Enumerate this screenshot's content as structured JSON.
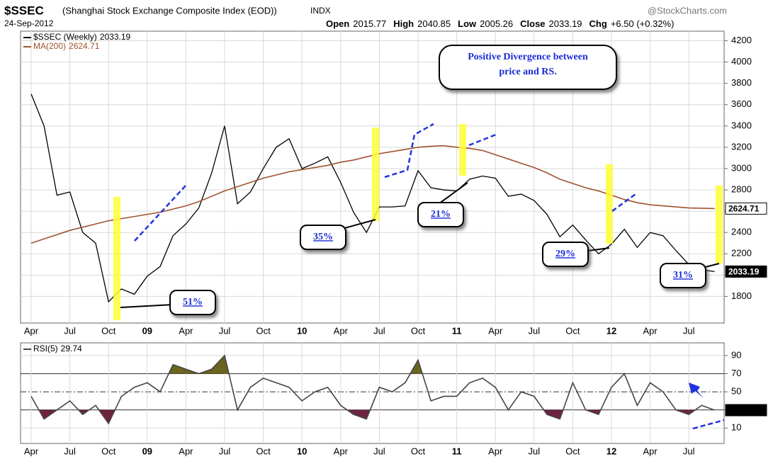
{
  "header": {
    "symbol": "$SSEC",
    "name": "(Shanghai Stock Exchange Composite Index (EOD))",
    "exchange": "INDX",
    "date": "24-Sep-2012",
    "source": "@StockCharts.com",
    "quote": [
      {
        "label": "Open",
        "value": "2015.77"
      },
      {
        "label": "High",
        "value": "2040.85"
      },
      {
        "label": "Low",
        "value": "2005.26"
      },
      {
        "label": "Close",
        "value": "2033.19"
      },
      {
        "label": "Chg",
        "value": "+6.50 (+0.32%)"
      }
    ]
  },
  "chart_data": [
    {
      "type": "line",
      "categories": [
        "Apr",
        null,
        null,
        "Jul",
        null,
        null,
        "Oct",
        null,
        null,
        "09",
        null,
        null,
        "Apr",
        null,
        null,
        "Jul",
        null,
        null,
        "Oct",
        null,
        null,
        "10",
        null,
        null,
        "Apr",
        null,
        null,
        "Jul",
        null,
        null,
        "Oct",
        null,
        null,
        "11",
        null,
        null,
        "Apr",
        null,
        null,
        "Jul",
        null,
        null,
        "Oct",
        null,
        null,
        "12",
        null,
        null,
        "Apr",
        null,
        null,
        "Jul",
        null,
        null
      ],
      "series": [
        {
          "name": "$SSEC (Weekly)",
          "color": "#000000",
          "values": [
            3700,
            3400,
            2750,
            2780,
            2400,
            2300,
            1750,
            1870,
            1820,
            1990,
            2080,
            2370,
            2480,
            2630,
            2960,
            3400,
            2670,
            2780,
            3000,
            3200,
            3280,
            3000,
            3050,
            3110,
            2870,
            2590,
            2400,
            2640,
            2640,
            2650,
            2980,
            2820,
            2800,
            2790,
            2900,
            2930,
            2910,
            2740,
            2760,
            2700,
            2570,
            2360,
            2470,
            2330,
            2200,
            2290,
            2430,
            2260,
            2400,
            2370,
            2230,
            2100,
            2050,
            2033.19
          ]
        },
        {
          "name": "MA(200)",
          "color": "#a0522d",
          "values": [
            2300,
            2340,
            2380,
            2420,
            2450,
            2480,
            2510,
            2530,
            2550,
            2570,
            2590,
            2620,
            2650,
            2690,
            2740,
            2790,
            2830,
            2870,
            2910,
            2940,
            2970,
            2990,
            3010,
            3030,
            3060,
            3080,
            3110,
            3140,
            3160,
            3180,
            3200,
            3210,
            3215,
            3200,
            3190,
            3170,
            3130,
            3090,
            3050,
            3010,
            2960,
            2900,
            2860,
            2820,
            2790,
            2750,
            2710,
            2680,
            2660,
            2650,
            2640,
            2630,
            2628,
            2624.71
          ]
        }
      ],
      "ylim": [
        1550,
        4290
      ],
      "yticks": [
        1800,
        2000,
        2200,
        2400,
        2600,
        2800,
        3000,
        3200,
        3400,
        3600,
        3800,
        4000,
        4200
      ],
      "grid": true,
      "callout": [
        "Positive Divergence between",
        "price and RS."
      ],
      "pct_labels": [
        "51%",
        "35%",
        "21%",
        "29%",
        "31%"
      ]
    },
    {
      "type": "line",
      "categories": [
        "Apr",
        null,
        null,
        "Jul",
        null,
        null,
        "Oct",
        null,
        null,
        "09",
        null,
        null,
        "Apr",
        null,
        null,
        "Jul",
        null,
        null,
        "Oct",
        null,
        null,
        "10",
        null,
        null,
        "Apr",
        null,
        null,
        "Jul",
        null,
        null,
        "Oct",
        null,
        null,
        "11",
        null,
        null,
        "Apr",
        null,
        null,
        "Jul",
        null,
        null,
        "Oct",
        null,
        null,
        "12",
        null,
        null,
        "Apr",
        null,
        null,
        "Jul",
        null,
        null
      ],
      "series": [
        {
          "name": "RSI(5)",
          "color": "#444444",
          "values": [
            45,
            20,
            30,
            40,
            25,
            35,
            15,
            45,
            55,
            60,
            50,
            80,
            75,
            70,
            75,
            90,
            30,
            55,
            65,
            60,
            55,
            40,
            50,
            55,
            35,
            25,
            20,
            55,
            50,
            60,
            85,
            40,
            45,
            45,
            60,
            65,
            55,
            30,
            50,
            45,
            25,
            20,
            60,
            30,
            25,
            55,
            70,
            35,
            60,
            50,
            30,
            25,
            35,
            29.74
          ]
        }
      ],
      "ylim": [
        -7,
        104
      ],
      "yticks": [
        10,
        30,
        50,
        70,
        90
      ],
      "grid": true
    }
  ]
}
